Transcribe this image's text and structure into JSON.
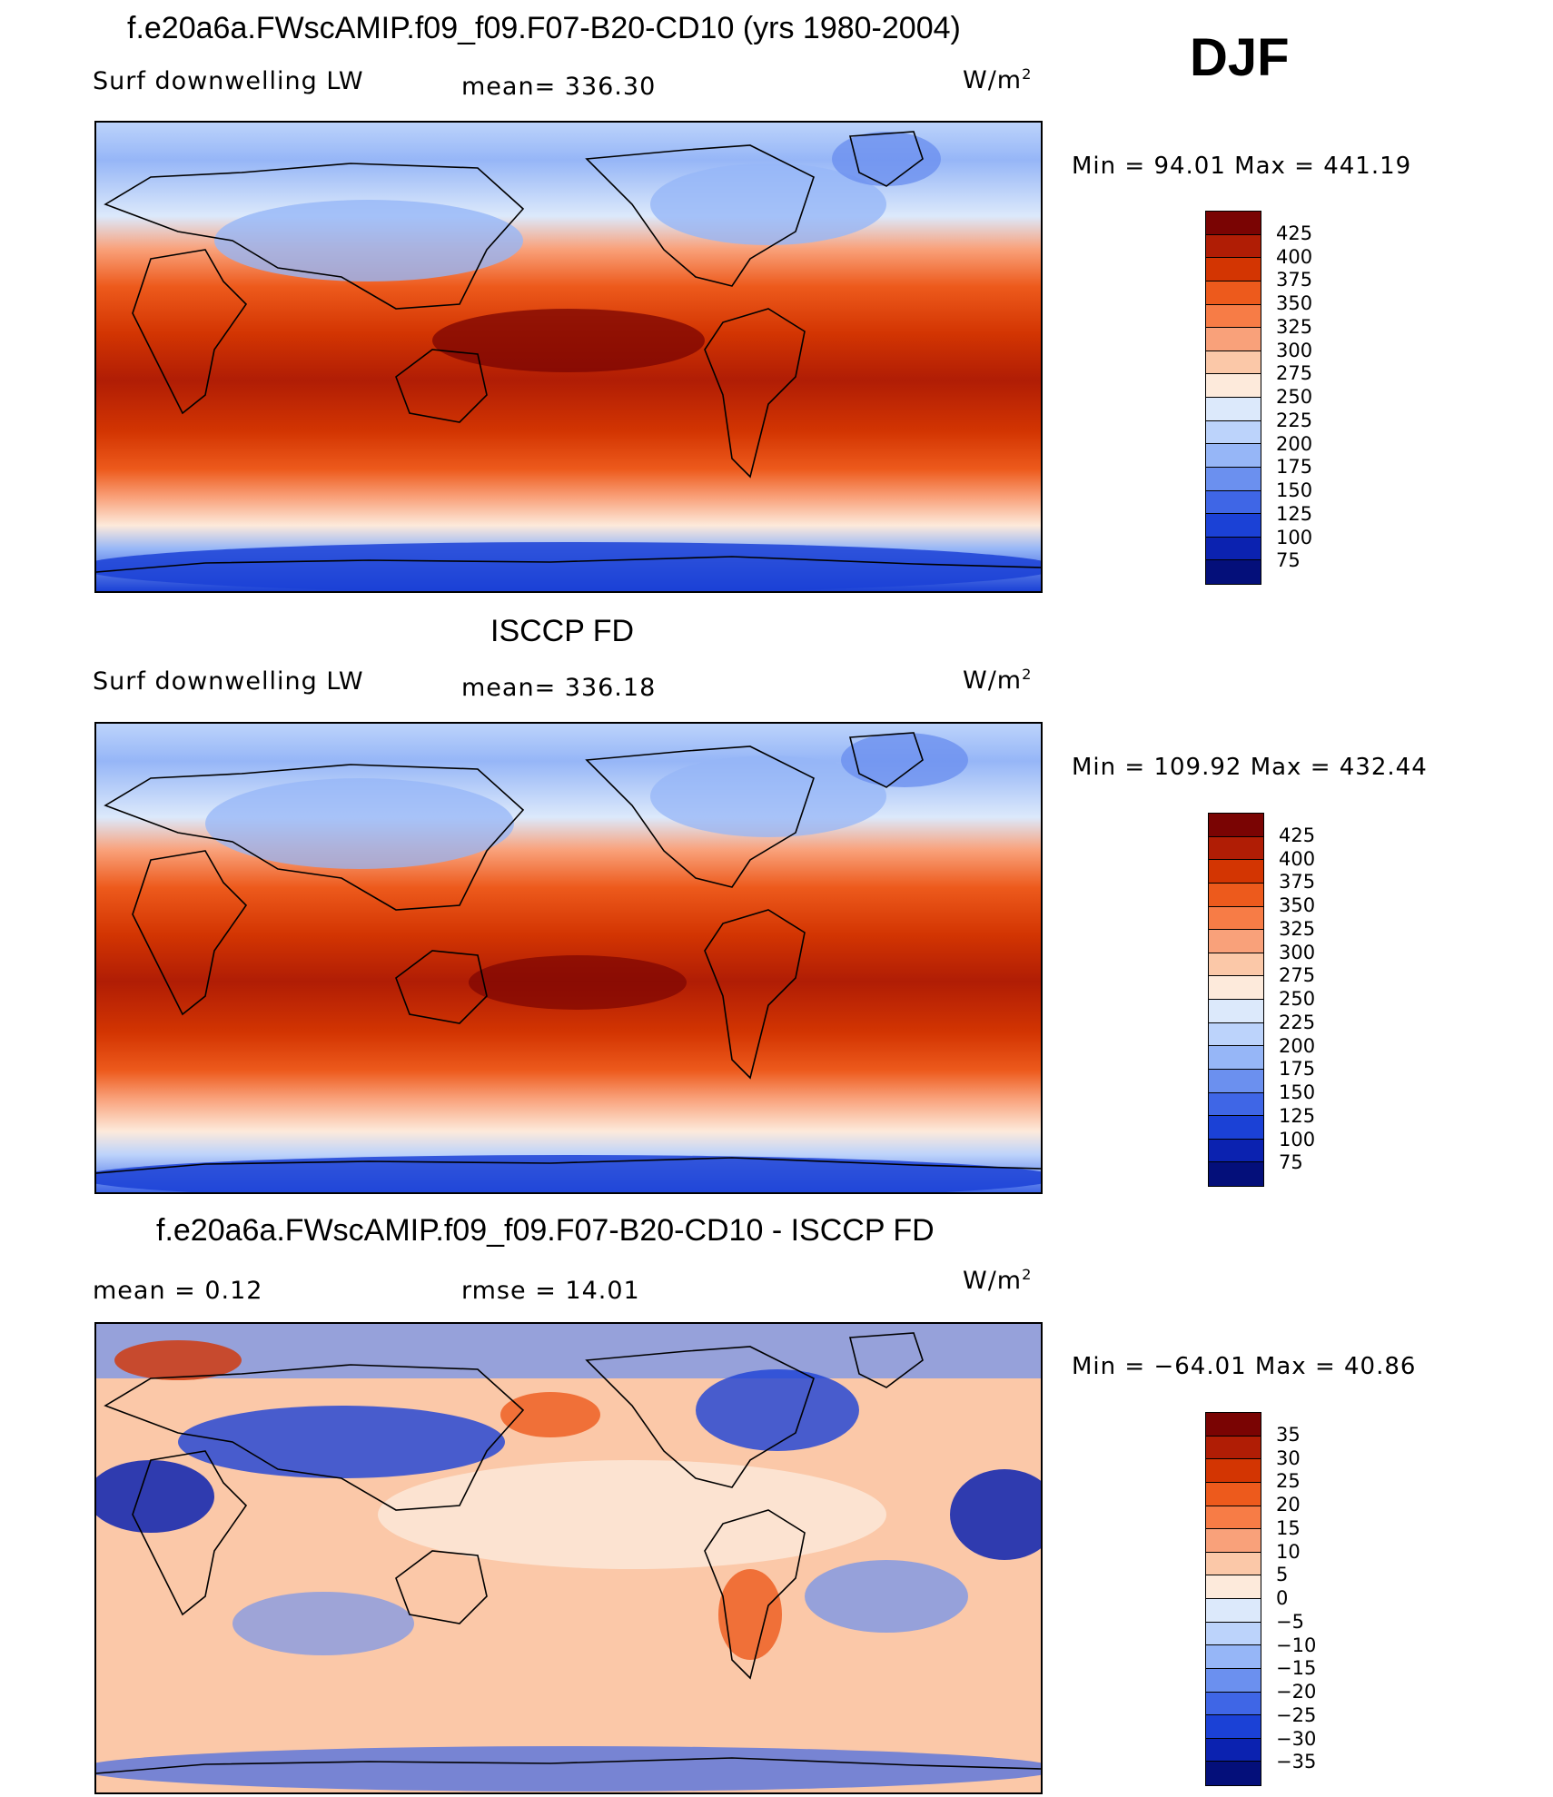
{
  "season": "DJF",
  "panels": [
    {
      "title": "f.e20a6a.FWscAMIP.f09_f09.F07-B20-CD10 (yrs 1980-2004)",
      "left_label": "Surf  downwelling  LW",
      "mid_label": "mean=  336.30",
      "units_base": "W/m",
      "units_exp": "2",
      "minmax": "Min  =    94.01  Max  =  441.19",
      "min": 94.01,
      "max": 441.19,
      "mean": 336.3
    },
    {
      "title": "ISCCP FD",
      "left_label": "Surf  downwelling  LW",
      "mid_label": "mean=  336.18",
      "units_base": "W/m",
      "units_exp": "2",
      "minmax": "Min  =  109.92  Max  =  432.44",
      "min": 109.92,
      "max": 432.44,
      "mean": 336.18
    },
    {
      "title": "f.e20a6a.FWscAMIP.f09_f09.F07-B20-CD10 - ISCCP FD",
      "left_label": "mean  =     0.12",
      "mid_label": "rmse  =    14.01",
      "units_base": "W/m",
      "units_exp": "2",
      "minmax": "Min  =  −64.01  Max  =    40.86",
      "min": -64.01,
      "max": 40.86,
      "mean": 0.12,
      "rmse": 14.01
    }
  ],
  "colorbar_abs": {
    "labels": [
      "425",
      "400",
      "375",
      "350",
      "325",
      "300",
      "275",
      "250",
      "225",
      "200",
      "175",
      "150",
      "125",
      "100",
      "75"
    ],
    "colors": [
      "#7a0403",
      "#b01d05",
      "#d33502",
      "#ed5a1c",
      "#f77c46",
      "#f9a17a",
      "#fbc8a8",
      "#fdeadb",
      "#dce9fb",
      "#bcd3fb",
      "#96b6f7",
      "#6b90ef",
      "#3f66e6",
      "#1b41d6",
      "#0b22b0",
      "#040f7a"
    ]
  },
  "colorbar_diff": {
    "labels": [
      "35",
      "30",
      "25",
      "20",
      "15",
      "10",
      "5",
      "0",
      "−5",
      "−10",
      "−15",
      "−20",
      "−25",
      "−30",
      "−35"
    ],
    "colors": [
      "#7a0403",
      "#b01d05",
      "#d33502",
      "#ed5a1c",
      "#f77c46",
      "#f9a17a",
      "#fbc8a8",
      "#fdeadb",
      "#dce9fb",
      "#bcd3fb",
      "#96b6f7",
      "#6b90ef",
      "#3f66e6",
      "#1b41d6",
      "#0b22b0",
      "#040f7a"
    ]
  }
}
